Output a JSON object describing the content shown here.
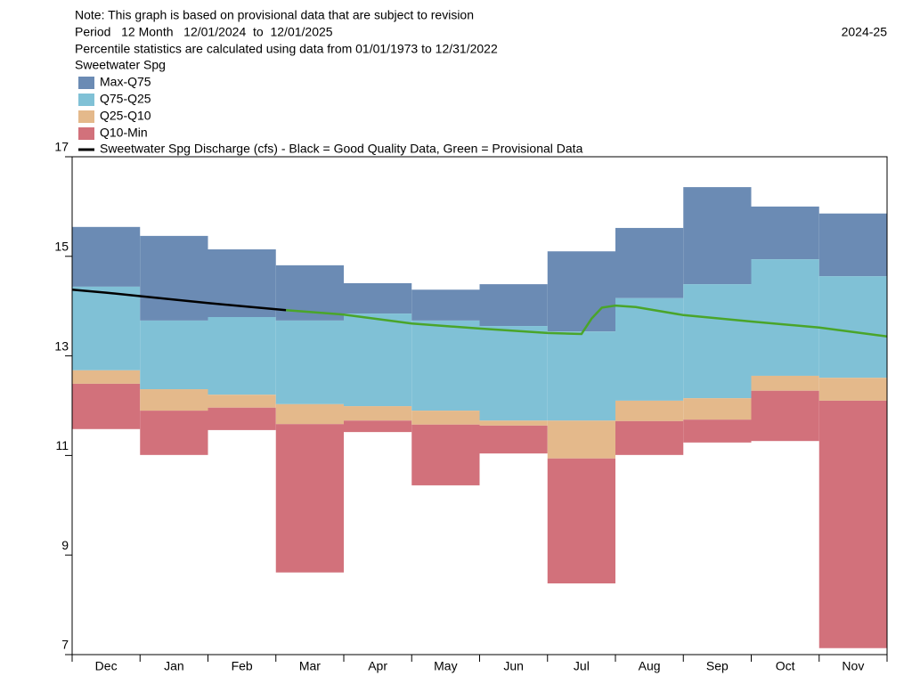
{
  "chart_data": {
    "type": "percentile-band",
    "note": "Note: This graph is based on provisional data that are subject to revision",
    "period": "Period   12 Month   12/01/2024  to  12/01/2025",
    "water_year": "2024-25",
    "percentile_note": "Percentile statistics are calculated using data from 01/01/1973 to 12/31/2022",
    "station": "Sweetwater Spg",
    "categories": [
      "Dec",
      "Jan",
      "Feb",
      "Mar",
      "Apr",
      "May",
      "Jun",
      "Jul",
      "Aug",
      "Sep",
      "Oct",
      "Nov"
    ],
    "series": [
      {
        "name": "Max-Q75",
        "color": "#6b8bb4",
        "values": [
          15.59,
          15.41,
          15.14,
          14.82,
          14.46,
          14.33,
          14.44,
          15.1,
          15.57,
          16.39,
          16.0,
          15.86
        ]
      },
      {
        "name": "Q75-Q25",
        "color": "#80c1d6",
        "values": [
          14.39,
          13.71,
          13.78,
          13.71,
          13.85,
          13.71,
          13.6,
          13.49,
          14.16,
          14.44,
          14.94,
          14.6
        ]
      },
      {
        "name": "Q25-Q10",
        "color": "#e4b98b",
        "values": [
          12.71,
          12.33,
          12.22,
          12.03,
          11.99,
          11.9,
          11.7,
          11.7,
          12.1,
          12.15,
          12.6,
          12.56
        ]
      },
      {
        "name": "Q10-Min",
        "color": "#d2717b",
        "values": [
          12.44,
          11.9,
          11.96,
          11.63,
          11.7,
          11.62,
          11.6,
          10.94,
          11.69,
          11.72,
          12.3,
          12.1
        ]
      }
    ],
    "minimum": [
      11.53,
      11.01,
      11.51,
      8.65,
      11.47,
      10.4,
      11.04,
      8.43,
      11.01,
      11.26,
      11.29,
      7.13
    ],
    "line_legend": "Sweetwater Spg Discharge (cfs) - Black = Good Quality Data, Green = Provisional Data",
    "lines": [
      {
        "color": "#000000",
        "x": [
          0,
          0.5,
          1,
          1.5,
          2,
          2.5,
          3.15
        ],
        "values": [
          14.33,
          14.27,
          14.2,
          14.13,
          14.06,
          14.0,
          13.92
        ]
      },
      {
        "color": "#4aa52a",
        "x": [
          3.15,
          4,
          5,
          6,
          7,
          7.5,
          7.65,
          7.8,
          8,
          8.3,
          9,
          10,
          11,
          12
        ],
        "values": [
          13.92,
          13.83,
          13.65,
          13.55,
          13.46,
          13.44,
          13.75,
          13.97,
          14.01,
          13.98,
          13.82,
          13.69,
          13.57,
          13.39
        ]
      }
    ],
    "ylim": [
      7,
      17
    ],
    "yticks": [
      7,
      9,
      11,
      13,
      15,
      17
    ]
  }
}
